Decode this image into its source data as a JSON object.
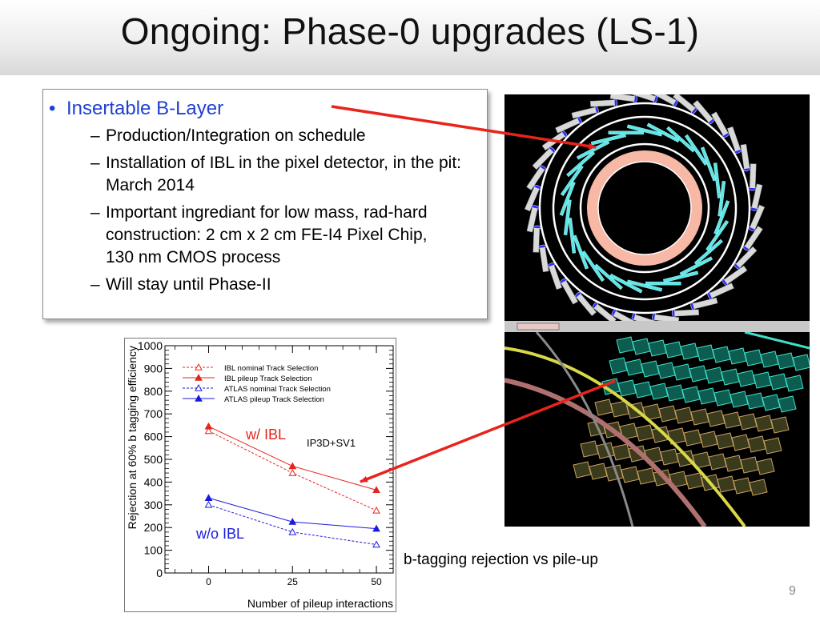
{
  "slide": {
    "title": "Ongoing: Phase-0 upgrades (LS-1)",
    "page_number": "9",
    "caption": "b-tagging rejection vs pile-up"
  },
  "bullets": {
    "main": "Insertable B-Layer",
    "sub": [
      "Production/Integration on schedule",
      "Installation of IBL in the pixel detector, in the pit: March 2014",
      "Important ingrediant for low mass, rad-hard construction: 2 cm x 2 cm FE-I4 Pixel Chip, 130 nm CMOS process",
      "Will stay until Phase-II"
    ]
  },
  "colors": {
    "ibl": "#e8231c",
    "atlas": "#1a1adf",
    "bullet_blue": "#1f3fd1",
    "arrow": "#e8231c"
  },
  "chart_data": {
    "type": "line",
    "title": "",
    "xlabel": "Number of pileup interactions",
    "ylabel": "Rejection at 60% b tagging efficiency",
    "x": [
      0,
      25,
      50
    ],
    "x_ticks": [
      "0",
      "25",
      "50"
    ],
    "y_ticks": [
      "0",
      "100",
      "200",
      "300",
      "400",
      "500",
      "600",
      "700",
      "800",
      "900",
      "1000"
    ],
    "xlim": [
      -13,
      55
    ],
    "ylim": [
      0,
      1000
    ],
    "series": [
      {
        "name": "IBL nominal Track Selection",
        "values": [
          625,
          440,
          275
        ],
        "color": "#e8231c",
        "dashed": true,
        "marker": "open-triangle"
      },
      {
        "name": "IBL pileup Track Selection",
        "values": [
          645,
          470,
          365
        ],
        "color": "#e8231c",
        "dashed": false,
        "marker": "filled-triangle"
      },
      {
        "name": "ATLAS nominal Track Selection",
        "values": [
          300,
          180,
          125
        ],
        "color": "#1a1adf",
        "dashed": true,
        "marker": "open-triangle"
      },
      {
        "name": "ATLAS pileup Track Selection",
        "values": [
          330,
          225,
          195
        ],
        "color": "#1a1adf",
        "dashed": false,
        "marker": "filled-triangle"
      }
    ],
    "annotations": {
      "with_ibl": "w/ IBL",
      "without_ibl": "w/o IBL",
      "algorithm": "IP3D+SV1"
    },
    "legend_position": "top"
  }
}
